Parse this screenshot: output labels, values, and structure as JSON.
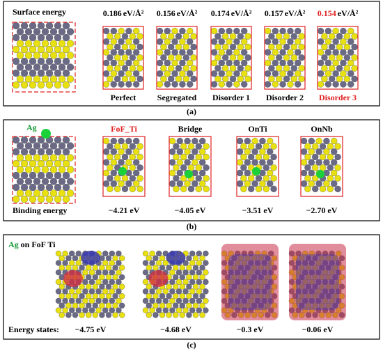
{
  "panel_a": {
    "title": "Surface energy",
    "unit": "eV/Å²",
    "values": [
      "0.186",
      "0.156",
      "0.174",
      "0.157",
      "0.154"
    ],
    "structures": [
      "Perfect",
      "Segregated",
      "Disorder 1",
      "Disorder 2",
      "Disorder 3"
    ],
    "caption": "(a)"
  },
  "panel_b": {
    "element": "Ag",
    "label": "Binding energy",
    "sites": [
      "FoF_Ti",
      "Bridge",
      "OnTi",
      "OnNb"
    ],
    "energies": [
      "−4.21 eV",
      "−4.05 eV",
      "−3.51 eV",
      "−2.70 eV"
    ],
    "caption": "(b)"
  },
  "panel_c": {
    "element": "Ag",
    "title": "on FoF Ti",
    "label": "Energy states:",
    "energies": [
      "−4.75 eV",
      "−4.68 eV",
      "−0.3 eV",
      "−0.06 eV"
    ],
    "caption": "(c)"
  }
}
